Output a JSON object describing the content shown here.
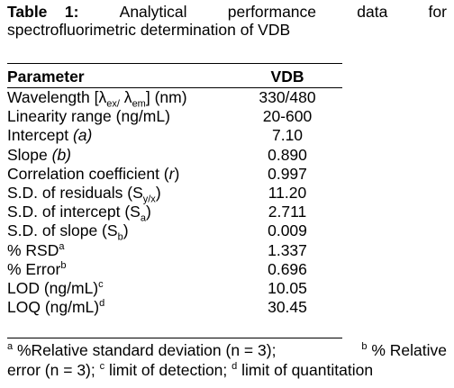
{
  "caption": {
    "label": "Table",
    "number": "1:",
    "words": [
      "Analytical",
      "performance",
      "data",
      "for"
    ],
    "line2": "spectrofluorimetric determination of VDB"
  },
  "table": {
    "headers": [
      "Parameter",
      "VDB"
    ],
    "rows": [
      {
        "param": "Wavelength [λex/ λem] (nm)",
        "parts": [
          "Wavelength [λ",
          "ex/",
          " λ",
          "em",
          "] (nm)"
        ],
        "value": "330/480"
      },
      {
        "param": "Linearity range (ng/mL)",
        "value": "20-600"
      },
      {
        "param": "Intercept (a)",
        "parts": [
          "Intercept ",
          "(a)"
        ],
        "value": "7.10"
      },
      {
        "param": "Slope (b)",
        "parts": [
          "Slope ",
          "(b)"
        ],
        "value": "0.890"
      },
      {
        "param": "Correlation coefficient (r)",
        "parts": [
          "Correlation coefficient (",
          "r",
          ")"
        ],
        "value": "0.997"
      },
      {
        "param": "S.D. of residuals (Sy/x)",
        "parts": [
          "S.D. of residuals (S",
          "y/x",
          ")"
        ],
        "value": "11.20"
      },
      {
        "param": "S.D. of intercept (Sa)",
        "parts": [
          "S.D. of intercept (S",
          "a",
          ")"
        ],
        "value": "2.711"
      },
      {
        "param": "S.D. of slope (Sb)",
        "parts": [
          "S.D. of slope (S",
          "b",
          ")"
        ],
        "value": "0.009"
      },
      {
        "param": "% RSDa",
        "parts": [
          "% RSD",
          "a"
        ],
        "value": "1.337"
      },
      {
        "param": "% Errorb",
        "parts": [
          "% Error",
          "b"
        ],
        "value": "0.696"
      },
      {
        "param": "LOD (ng/mL)c",
        "parts": [
          "LOD (ng/mL)",
          "c"
        ],
        "value": "10.05"
      },
      {
        "param": "LOQ (ng/mL)d",
        "parts": [
          "LOQ (ng/mL)",
          "d"
        ],
        "value": "30.45"
      }
    ]
  },
  "footnote": {
    "line1_parts": [
      "a",
      " %Relative standard deviation (n = 3);",
      "b",
      " % Relative"
    ],
    "line2_parts": [
      "error (n = 3); ",
      "c",
      " limit of detection; ",
      "d",
      " limit of quantitation"
    ]
  }
}
